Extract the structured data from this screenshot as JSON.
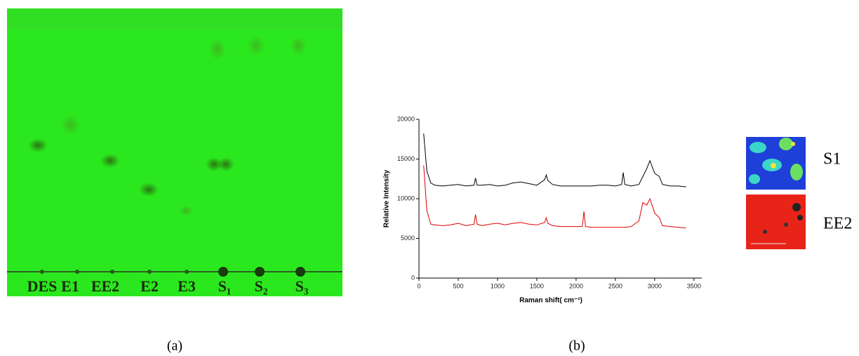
{
  "panel_a": {
    "lanes": [
      "DES",
      "E1",
      "EE2",
      "E2",
      "E3",
      "S₁",
      "S₂",
      "S₃"
    ],
    "caption": "(a)"
  },
  "panel_b": {
    "caption": "(b)",
    "insets": [
      "S1",
      "EE2"
    ]
  },
  "chart_data": {
    "type": "line",
    "x_label": "Raman shift( cm⁻¹)",
    "y_label": "Relative Intensity",
    "x": [
      60,
      100,
      150,
      200,
      300,
      400,
      500,
      600,
      700,
      720,
      740,
      800,
      900,
      1000,
      1100,
      1200,
      1300,
      1400,
      1500,
      1600,
      1620,
      1640,
      1700,
      1800,
      1900,
      2000,
      2080,
      2100,
      2120,
      2200,
      2300,
      2400,
      2500,
      2580,
      2600,
      2620,
      2700,
      2800,
      2850,
      2900,
      2940,
      3000,
      3060,
      3100,
      3200,
      3300,
      3400
    ],
    "series": [
      {
        "color": "#000000",
        "values": [
          18200,
          13500,
          12000,
          11700,
          11600,
          11700,
          11800,
          11600,
          11700,
          12600,
          11700,
          11700,
          11800,
          11600,
          11700,
          12000,
          12100,
          11900,
          11700,
          12400,
          13000,
          12300,
          11800,
          11600,
          11600,
          11600,
          11600,
          11600,
          11600,
          11600,
          11700,
          11700,
          11600,
          11800,
          13300,
          11800,
          11600,
          11800,
          12800,
          13800,
          14800,
          13200,
          12800,
          11800,
          11600,
          11600,
          11500
        ]
      },
      {
        "color": "#e00000",
        "values": [
          14200,
          8500,
          6800,
          6700,
          6600,
          6700,
          6900,
          6600,
          6800,
          8000,
          6800,
          6600,
          6800,
          6900,
          6700,
          6900,
          7000,
          6800,
          6700,
          7000,
          7600,
          6900,
          6600,
          6500,
          6500,
          6500,
          6500,
          8400,
          6500,
          6400,
          6400,
          6400,
          6400,
          6400,
          6400,
          6400,
          6500,
          7200,
          9500,
          9200,
          10000,
          8200,
          7600,
          6600,
          6500,
          6400,
          6300
        ]
      }
    ],
    "xlim": [
      0,
      3600
    ],
    "ylim": [
      0,
      20000
    ],
    "xticks": [
      0,
      500,
      1000,
      1500,
      2000,
      2500,
      3000,
      3500
    ],
    "yticks": [
      0,
      5000,
      10000,
      15000,
      20000
    ]
  }
}
